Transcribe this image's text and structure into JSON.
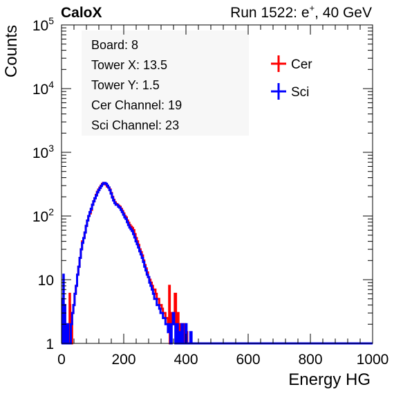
{
  "header": {
    "experiment": "CaloX",
    "run_prefix": "Run 1522: e",
    "run_sup": "+",
    "run_suffix": ", 40 GeV"
  },
  "info_lines": [
    "Board: 8",
    "Tower X: 13.5",
    "Tower Y: 1.5",
    "Cer Channel: 19",
    "Sci Channel: 23"
  ],
  "colors": {
    "cer": "#ff0000",
    "sci": "#0000ff",
    "axis": "#000000"
  },
  "chart_data": {
    "type": "line",
    "xlabel": "Energy HG",
    "ylabel": "Counts",
    "xlim": [
      0,
      1000
    ],
    "ylim": [
      1,
      100000
    ],
    "yscale": "log",
    "legend_position": "top-right",
    "x_ticks": [
      "0",
      "200",
      "400",
      "600",
      "800",
      "1000"
    ],
    "y_ticks": [
      {
        "value": 1,
        "base": "1",
        "exp": ""
      },
      {
        "value": 10,
        "base": "10",
        "exp": ""
      },
      {
        "value": 100,
        "base": "10",
        "exp": "2"
      },
      {
        "value": 1000,
        "base": "10",
        "exp": "3"
      },
      {
        "value": 10000,
        "base": "10",
        "exp": "4"
      },
      {
        "value": 100000,
        "base": "10",
        "exp": "5"
      }
    ],
    "series": [
      {
        "name": "Cer",
        "color": "#ff0000",
        "points": [
          [
            0,
            1
          ],
          [
            24,
            1
          ],
          [
            25,
            2
          ],
          [
            26,
            6
          ],
          [
            27,
            4
          ],
          [
            28,
            1
          ],
          [
            30,
            1
          ],
          [
            34,
            3
          ],
          [
            38,
            4
          ],
          [
            42,
            6
          ],
          [
            46,
            8
          ],
          [
            50,
            12
          ],
          [
            54,
            16
          ],
          [
            58,
            22
          ],
          [
            62,
            30
          ],
          [
            66,
            40
          ],
          [
            70,
            45
          ],
          [
            74,
            55
          ],
          [
            78,
            70
          ],
          [
            82,
            85
          ],
          [
            86,
            100
          ],
          [
            90,
            110
          ],
          [
            94,
            125
          ],
          [
            98,
            150
          ],
          [
            102,
            170
          ],
          [
            106,
            190
          ],
          [
            110,
            215
          ],
          [
            114,
            240
          ],
          [
            118,
            260
          ],
          [
            122,
            280
          ],
          [
            126,
            300
          ],
          [
            130,
            320
          ],
          [
            134,
            330
          ],
          [
            138,
            320
          ],
          [
            142,
            310
          ],
          [
            146,
            290
          ],
          [
            150,
            280
          ],
          [
            154,
            260
          ],
          [
            158,
            230
          ],
          [
            162,
            200
          ],
          [
            166,
            180
          ],
          [
            170,
            165
          ],
          [
            174,
            155
          ],
          [
            178,
            150
          ],
          [
            182,
            145
          ],
          [
            186,
            140
          ],
          [
            190,
            130
          ],
          [
            194,
            120
          ],
          [
            198,
            110
          ],
          [
            202,
            100
          ],
          [
            206,
            95
          ],
          [
            210,
            85
          ],
          [
            214,
            78
          ],
          [
            218,
            72
          ],
          [
            222,
            68
          ],
          [
            226,
            65
          ],
          [
            230,
            60
          ],
          [
            234,
            52
          ],
          [
            238,
            45
          ],
          [
            242,
            40
          ],
          [
            246,
            35
          ],
          [
            250,
            30
          ],
          [
            254,
            27
          ],
          [
            258,
            24
          ],
          [
            262,
            20
          ],
          [
            266,
            17
          ],
          [
            270,
            15
          ],
          [
            274,
            13
          ],
          [
            278,
            11
          ],
          [
            282,
            10
          ],
          [
            286,
            9
          ],
          [
            290,
            8
          ],
          [
            294,
            7
          ],
          [
            298,
            7
          ],
          [
            302,
            6
          ],
          [
            306,
            5
          ],
          [
            310,
            5
          ],
          [
            314,
            4
          ],
          [
            318,
            4
          ],
          [
            322,
            3.5
          ],
          [
            326,
            3
          ],
          [
            330,
            3
          ],
          [
            334,
            2.5
          ],
          [
            338,
            2.5
          ],
          [
            342,
            2
          ],
          [
            346,
            8
          ],
          [
            348,
            1
          ],
          [
            352,
            3
          ],
          [
            356,
            2
          ],
          [
            360,
            3
          ],
          [
            364,
            6
          ],
          [
            368,
            2
          ],
          [
            372,
            3
          ],
          [
            376,
            1
          ],
          [
            380,
            2
          ],
          [
            384,
            1.5
          ],
          [
            388,
            1
          ],
          [
            392,
            2
          ],
          [
            396,
            1
          ],
          [
            400,
            1.5
          ],
          [
            404,
            1
          ],
          [
            408,
            1
          ],
          [
            412,
            1
          ],
          [
            420,
            1
          ],
          [
            430,
            1
          ],
          [
            440,
            1
          ],
          [
            450,
            1
          ],
          [
            460,
            1
          ],
          [
            470,
            1
          ],
          [
            480,
            1
          ],
          [
            490,
            1
          ],
          [
            1000,
            1
          ]
        ]
      },
      {
        "name": "Sci",
        "color": "#0000ff",
        "points": [
          [
            0,
            1
          ],
          [
            3,
            5
          ],
          [
            4,
            1
          ],
          [
            6,
            12
          ],
          [
            7,
            3
          ],
          [
            8,
            1
          ],
          [
            10,
            4
          ],
          [
            12,
            2
          ],
          [
            14,
            1
          ],
          [
            16,
            1
          ],
          [
            18,
            1
          ],
          [
            20,
            2
          ],
          [
            22,
            1
          ],
          [
            26,
            1
          ],
          [
            30,
            2
          ],
          [
            34,
            3
          ],
          [
            38,
            4
          ],
          [
            42,
            6
          ],
          [
            46,
            8
          ],
          [
            50,
            12
          ],
          [
            54,
            16
          ],
          [
            58,
            22
          ],
          [
            62,
            30
          ],
          [
            66,
            38
          ],
          [
            70,
            45
          ],
          [
            74,
            55
          ],
          [
            78,
            70
          ],
          [
            82,
            85
          ],
          [
            86,
            100
          ],
          [
            90,
            115
          ],
          [
            94,
            130
          ],
          [
            98,
            150
          ],
          [
            102,
            170
          ],
          [
            106,
            190
          ],
          [
            110,
            210
          ],
          [
            114,
            235
          ],
          [
            118,
            255
          ],
          [
            122,
            275
          ],
          [
            126,
            295
          ],
          [
            130,
            315
          ],
          [
            134,
            330
          ],
          [
            138,
            330
          ],
          [
            142,
            320
          ],
          [
            146,
            300
          ],
          [
            150,
            280
          ],
          [
            154,
            255
          ],
          [
            158,
            225
          ],
          [
            162,
            195
          ],
          [
            166,
            175
          ],
          [
            170,
            160
          ],
          [
            174,
            150
          ],
          [
            178,
            150
          ],
          [
            182,
            140
          ],
          [
            186,
            135
          ],
          [
            190,
            125
          ],
          [
            194,
            115
          ],
          [
            198,
            105
          ],
          [
            202,
            95
          ],
          [
            206,
            90
          ],
          [
            210,
            80
          ],
          [
            214,
            72
          ],
          [
            218,
            66
          ],
          [
            222,
            62
          ],
          [
            226,
            58
          ],
          [
            230,
            52
          ],
          [
            234,
            46
          ],
          [
            238,
            40
          ],
          [
            242,
            36
          ],
          [
            246,
            32
          ],
          [
            250,
            28
          ],
          [
            254,
            25
          ],
          [
            258,
            22
          ],
          [
            262,
            19
          ],
          [
            266,
            16
          ],
          [
            270,
            14
          ],
          [
            274,
            12
          ],
          [
            278,
            11
          ],
          [
            282,
            9
          ],
          [
            286,
            8
          ],
          [
            290,
            7
          ],
          [
            294,
            6
          ],
          [
            298,
            5
          ],
          [
            302,
            5
          ],
          [
            306,
            4
          ],
          [
            310,
            4
          ],
          [
            314,
            3.5
          ],
          [
            318,
            3
          ],
          [
            322,
            3
          ],
          [
            326,
            2.5
          ],
          [
            330,
            2.5
          ],
          [
            334,
            2
          ],
          [
            338,
            2
          ],
          [
            342,
            1.5
          ],
          [
            346,
            2
          ],
          [
            350,
            1
          ],
          [
            354,
            2
          ],
          [
            358,
            3
          ],
          [
            362,
            2
          ],
          [
            366,
            1
          ],
          [
            370,
            2
          ],
          [
            374,
            1
          ],
          [
            378,
            1.5
          ],
          [
            382,
            1
          ],
          [
            386,
            2
          ],
          [
            390,
            1
          ],
          [
            394,
            1
          ],
          [
            398,
            2
          ],
          [
            402,
            1
          ],
          [
            406,
            1
          ],
          [
            410,
            1
          ],
          [
            414,
            1.5
          ],
          [
            418,
            1
          ],
          [
            422,
            1
          ],
          [
            426,
            1
          ],
          [
            430,
            1
          ],
          [
            434,
            1
          ],
          [
            438,
            1
          ],
          [
            442,
            1
          ],
          [
            446,
            1
          ],
          [
            450,
            1
          ],
          [
            454,
            1
          ],
          [
            458,
            1
          ],
          [
            462,
            1
          ],
          [
            466,
            1
          ],
          [
            470,
            1
          ],
          [
            474,
            1
          ],
          [
            478,
            1
          ],
          [
            482,
            1
          ],
          [
            486,
            1
          ],
          [
            490,
            1
          ],
          [
            494,
            1
          ],
          [
            498,
            1
          ],
          [
            502,
            1
          ],
          [
            506,
            1
          ],
          [
            510,
            1
          ],
          [
            1000,
            1
          ]
        ]
      }
    ]
  }
}
